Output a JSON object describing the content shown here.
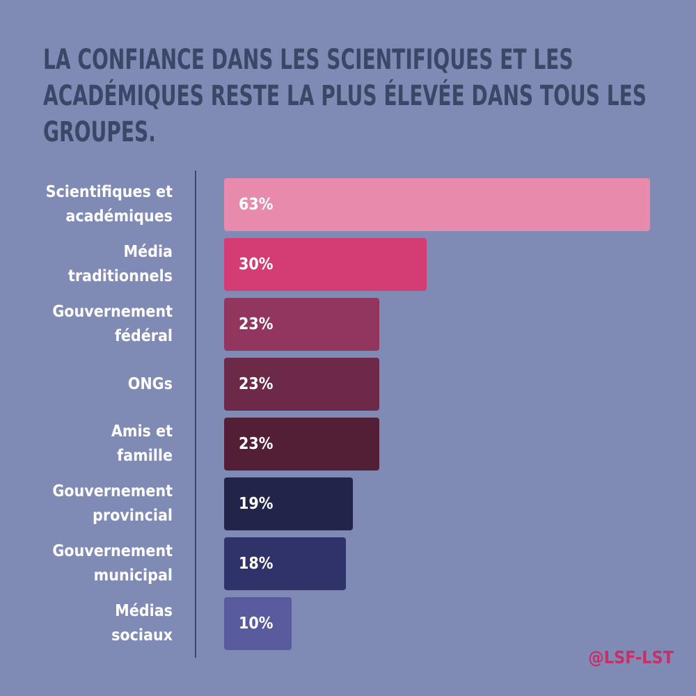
{
  "chart_data": {
    "type": "bar",
    "orientation": "horizontal",
    "title": "LA CONFIANCE DANS LES SCIENTIFIQUES ET LES ACADÉMIQUES RESTE LA PLUS ÉLEVÉE DANS TOUS LES GROUPES.",
    "categories": [
      "Scientifiques et\nacadémiques",
      "Média\ntraditionnels",
      "Gouvernement\nfédéral",
      "ONGs",
      "Amis et \nfamille",
      "Gouvernement\nprovincial",
      "Gouvernement\nmunicipal",
      "Médias\nsociaux"
    ],
    "values": [
      63,
      30,
      23,
      23,
      23,
      19,
      18,
      10
    ],
    "value_labels": [
      "63%",
      "30%",
      "23%",
      "23%",
      "23%",
      "19%",
      "18%",
      "10%"
    ],
    "colors": [
      "#e78aab",
      "#d43d74",
      "#923660",
      "#6c2948",
      "#521f36",
      "#23244a",
      "#2f336a",
      "#5a5a9e"
    ],
    "grid": false,
    "legend": "none"
  },
  "watermark": "@LSF-LST",
  "theme": {
    "background": "#7f8bb5",
    "title_color": "#3b4766",
    "watermark_color": "#c53068"
  }
}
